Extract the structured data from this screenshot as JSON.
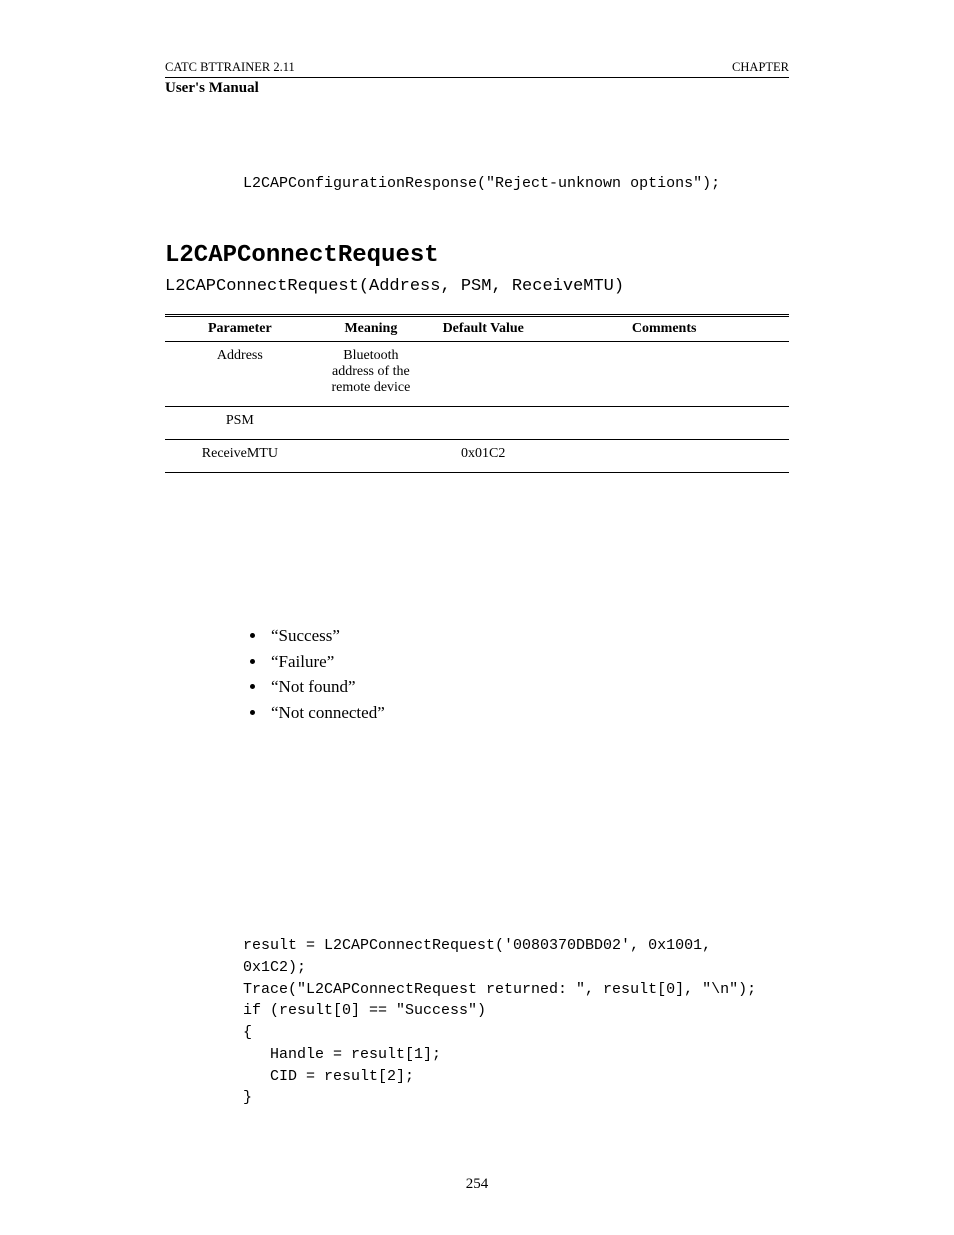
{
  "header": {
    "left": "CATC BTTRAINER 2.11",
    "right": "CHAPTER",
    "sub": "User's Manual"
  },
  "intro_code": "L2CAPConfigurationResponse(\"Reject-unknown options\");",
  "section_title": "L2CAPConnectRequest",
  "signature": "L2CAPConnectRequest(Address, PSM, ReceiveMTU)",
  "table": {
    "columns": [
      "Parameter",
      "Meaning",
      "Default Value",
      "Comments"
    ],
    "col_widths": [
      "24%",
      "18%",
      "18%",
      "40%"
    ],
    "rows": [
      [
        "Address",
        "Bluetooth address of the remote device",
        "",
        ""
      ],
      [
        "PSM",
        "",
        "",
        ""
      ],
      [
        "ReceiveMTU",
        "",
        "0x01C2",
        ""
      ]
    ]
  },
  "bullets": [
    "“Success”",
    "“Failure”",
    "“Not found”",
    "“Not connected”"
  ],
  "code_block": "result = L2CAPConnectRequest('0080370DBD02', 0x1001,\n0x1C2);\nTrace(\"L2CAPConnectRequest returned: \", result[0], \"\\n\");\nif (result[0] == \"Success\")\n{\n   Handle = result[1];\n   CID = result[2];\n}",
  "page_number": "254"
}
